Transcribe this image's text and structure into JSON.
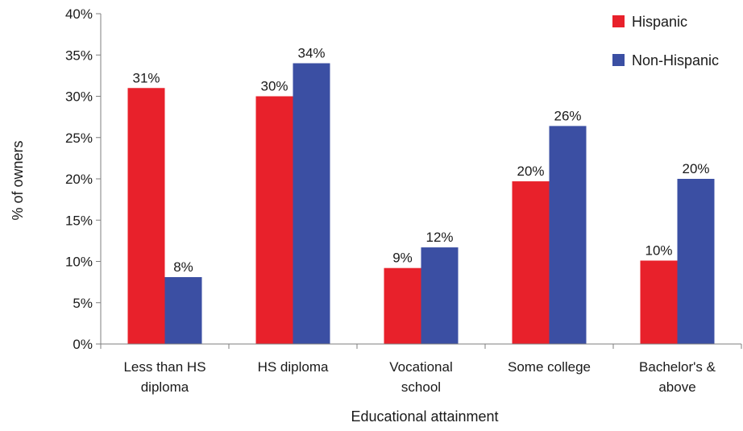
{
  "chart_data": {
    "type": "bar",
    "title": "",
    "xlabel": "Educational attainment",
    "ylabel": "% of owners",
    "ylim": [
      0,
      40
    ],
    "y_tick_step": 5,
    "y_tick_suffix": "%",
    "grid": false,
    "legend": "top-right",
    "categories": [
      [
        "Less than HS",
        "diploma"
      ],
      [
        "HS diploma"
      ],
      [
        "Vocational",
        "school"
      ],
      [
        "Some college"
      ],
      [
        "Bachelor's &",
        "above"
      ]
    ],
    "series": [
      {
        "name": "Hispanic",
        "color": "#e8212b",
        "values": [
          31,
          30,
          9.2,
          19.7,
          10.1
        ],
        "labels": [
          "31%",
          "30%",
          "9%",
          "20%",
          "10%"
        ]
      },
      {
        "name": "Non-Hispanic",
        "color": "#3b4fa3",
        "values": [
          8.1,
          34,
          11.7,
          26.4,
          20
        ],
        "labels": [
          "8%",
          "34%",
          "12%",
          "26%",
          "20%"
        ]
      }
    ]
  }
}
